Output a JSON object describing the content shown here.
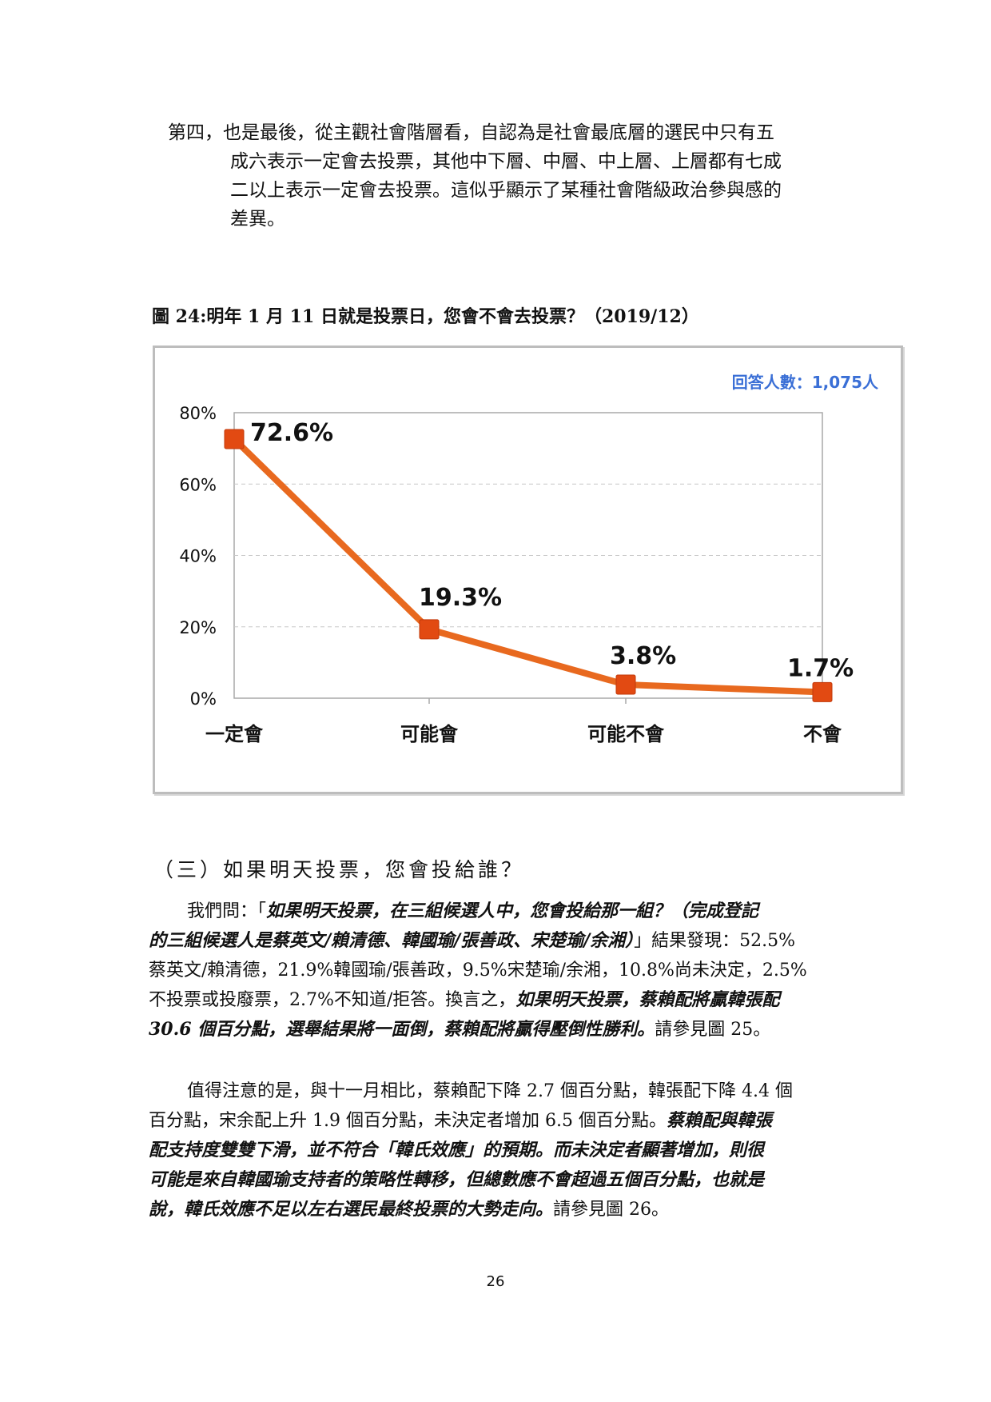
{
  "para1": {
    "lines": [
      "第四，也是最後，從主觀社會階層看，自認為是社會最底層的選民中只有五",
      "成六表示一定會去投票，其他中下層、中層、中上層、上層都有七成",
      "二以上表示一定會去投票。這似乎顯示了某種社會階級政治參與感的",
      "差異。"
    ]
  },
  "figure": {
    "caption": "圖 24:明年 1 月 11 日就是投票日，您會不會去投票？（2019/12）"
  },
  "chart_data": {
    "type": "line",
    "categories": [
      "一定會",
      "可能會",
      "可能不會",
      "不會"
    ],
    "values": [
      72.6,
      19.3,
      3.8,
      1.7
    ],
    "value_labels": [
      "72.6%",
      "19.3%",
      "3.8%",
      "1.7%"
    ],
    "yticks": [
      "0%",
      "20%",
      "40%",
      "60%",
      "80%"
    ],
    "ylim": [
      0,
      80
    ],
    "grid": true,
    "annotation": "回答人數：1,075人",
    "colors": {
      "line": "#e8691f",
      "marker": "#e24a12",
      "annotation": "#3a6fd6"
    }
  },
  "section": {
    "title": "（三）如果明天投票，您會投給誰？"
  },
  "p2": {
    "l1a": "我們問：「",
    "l1b": "如果明天投票，在三組候選人中，您會投給那一組？（完成登記",
    "l2a": "的三組候選人是蔡英文/賴清德、韓國瑜/張善政、宋楚瑜/余湘）",
    "l2b": "」結果發現：52.5%",
    "l3": "蔡英文/賴清德，21.9%韓國瑜/張善政，9.5%宋楚瑜/余湘，10.8%尚未決定，2.5%",
    "l4a": "不投票或投廢票，2.7%不知道/拒答。換言之，",
    "l4b": "如果明天投票，蔡賴配將贏韓張配",
    "l5a": "30.6 個百分點，選舉結果將一面倒，蔡賴配將贏得壓倒性勝利。",
    "l5b": "請參見圖 25。"
  },
  "p3": {
    "l1": "值得注意的是，與十一月相比，蔡賴配下降 2.7 個百分點，韓張配下降 4.4 個",
    "l2a": "百分點，宋余配上升 1.9 個百分點，未決定者增加 6.5 個百分點。",
    "l2b": "蔡賴配與韓張",
    "l3": "配支持度雙雙下滑，並不符合「韓氏效應」的預期。而未決定者顯著增加，則很",
    "l4": "可能是來自韓國瑜支持者的策略性轉移，但總數應不會超過五個百分點，也就是",
    "l5a": "說，韓氏效應不足以左右選民最終投票的大勢走向。",
    "l5b": "請參見圖 26。"
  },
  "page_number": "26"
}
